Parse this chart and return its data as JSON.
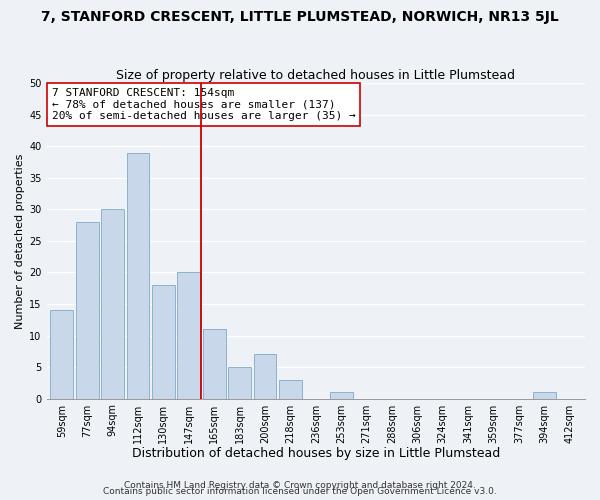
{
  "title": "7, STANFORD CRESCENT, LITTLE PLUMSTEAD, NORWICH, NR13 5JL",
  "subtitle": "Size of property relative to detached houses in Little Plumstead",
  "xlabel": "Distribution of detached houses by size in Little Plumstead",
  "ylabel": "Number of detached properties",
  "bar_labels": [
    "59sqm",
    "77sqm",
    "94sqm",
    "112sqm",
    "130sqm",
    "147sqm",
    "165sqm",
    "183sqm",
    "200sqm",
    "218sqm",
    "236sqm",
    "253sqm",
    "271sqm",
    "288sqm",
    "306sqm",
    "324sqm",
    "341sqm",
    "359sqm",
    "377sqm",
    "394sqm",
    "412sqm"
  ],
  "bar_values": [
    14,
    28,
    30,
    39,
    18,
    20,
    11,
    5,
    7,
    3,
    0,
    1,
    0,
    0,
    0,
    0,
    0,
    0,
    0,
    1,
    0
  ],
  "bar_color": "#c8d8ea",
  "bar_edge_color": "#8ab4cc",
  "vline_x": 5.5,
  "vline_color": "#cc0000",
  "annotation_title": "7 STANFORD CRESCENT: 154sqm",
  "annotation_line1": "← 78% of detached houses are smaller (137)",
  "annotation_line2": "20% of semi-detached houses are larger (35) →",
  "ylim": [
    0,
    50
  ],
  "yticks": [
    0,
    5,
    10,
    15,
    20,
    25,
    30,
    35,
    40,
    45,
    50
  ],
  "footnote1": "Contains HM Land Registry data © Crown copyright and database right 2024.",
  "footnote2": "Contains public sector information licensed under the Open Government Licence v3.0.",
  "bg_color": "#eef2f7",
  "grid_color": "#ffffff",
  "title_fontsize": 10,
  "subtitle_fontsize": 9,
  "xlabel_fontsize": 9,
  "ylabel_fontsize": 8,
  "tick_fontsize": 7,
  "annot_title_fontsize": 8,
  "annot_body_fontsize": 8,
  "footnote_fontsize": 6.5
}
